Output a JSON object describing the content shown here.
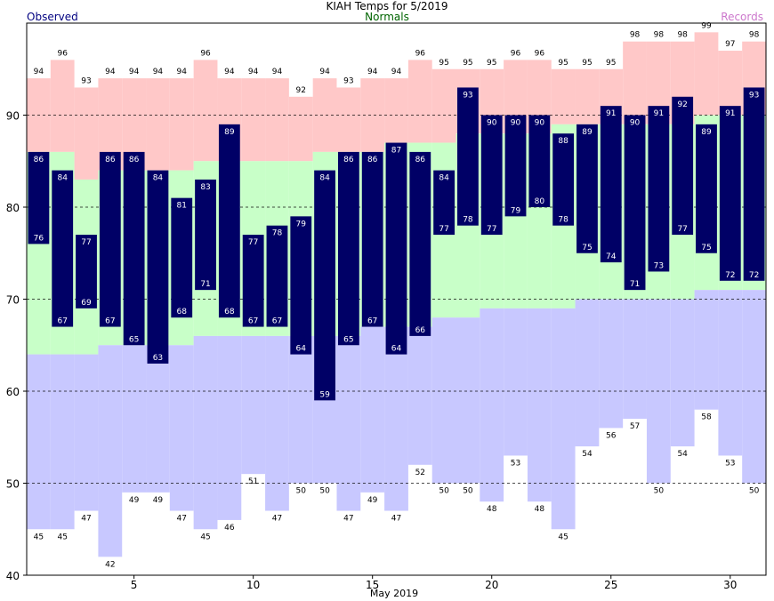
{
  "header": {
    "title": "KIAH Temps for 5/2019",
    "legend_observed": "Observed",
    "legend_normals": "Normals",
    "legend_records": "Records"
  },
  "chart_data": {
    "type": "bar",
    "title": "KIAH Temps for 5/2019",
    "xlabel": "May 2019",
    "ylabel": "",
    "x": [
      1,
      2,
      3,
      4,
      5,
      6,
      7,
      8,
      9,
      10,
      11,
      12,
      13,
      14,
      15,
      16,
      17,
      18,
      19,
      20,
      21,
      22,
      23,
      24,
      25,
      26,
      27,
      28,
      29,
      30,
      31
    ],
    "xticks": [
      5,
      10,
      15,
      20,
      25,
      30
    ],
    "yticks": [
      40,
      50,
      60,
      70,
      80,
      90
    ],
    "ylim": [
      40,
      100
    ],
    "xlim": [
      0.5,
      31.5
    ],
    "grid": true,
    "series": [
      {
        "name": "Observed",
        "high": [
          86,
          84,
          77,
          86,
          86,
          84,
          81,
          83,
          89,
          77,
          78,
          79,
          84,
          86,
          86,
          87,
          86,
          84,
          93,
          90,
          90,
          90,
          88,
          89,
          91,
          90,
          91,
          92,
          89,
          91,
          93
        ],
        "low": [
          76,
          67,
          69,
          67,
          65,
          63,
          68,
          71,
          68,
          67,
          67,
          64,
          59,
          65,
          67,
          64,
          66,
          77,
          78,
          77,
          79,
          80,
          78,
          75,
          74,
          71,
          73,
          77,
          75,
          72,
          72
        ]
      },
      {
        "name": "Normals",
        "high": [
          86,
          86,
          83,
          84,
          84,
          84,
          84,
          85,
          85,
          85,
          85,
          85,
          86,
          86,
          86,
          87,
          87,
          87,
          88,
          88,
          88,
          88,
          89,
          89,
          89,
          89,
          89,
          89,
          90,
          90,
          90
        ],
        "low": [
          64,
          64,
          64,
          65,
          65,
          65,
          65,
          66,
          66,
          66,
          66,
          66,
          66,
          66,
          67,
          67,
          67,
          68,
          68,
          69,
          69,
          69,
          69,
          70,
          70,
          70,
          70,
          70,
          71,
          71,
          71
        ]
      },
      {
        "name": "Records",
        "high": [
          94,
          96,
          93,
          94,
          94,
          94,
          94,
          96,
          94,
          94,
          94,
          92,
          94,
          93,
          94,
          94,
          96,
          95,
          95,
          95,
          96,
          96,
          95,
          95,
          95,
          98,
          98,
          98,
          99,
          97,
          98
        ],
        "low": [
          45,
          45,
          47,
          42,
          49,
          49,
          47,
          45,
          46,
          51,
          47,
          50,
          50,
          47,
          49,
          47,
          52,
          50,
          50,
          48,
          53,
          48,
          45,
          54,
          56,
          57,
          50,
          54,
          58,
          53,
          50
        ]
      }
    ],
    "colors": {
      "record_band": "#ffc8c8",
      "normal_band": "#c8ffc8",
      "record_low_band": "#c8c8ff",
      "observed_bar": "#000066",
      "grid": "#000000",
      "observed_label": "#ffffff"
    }
  }
}
